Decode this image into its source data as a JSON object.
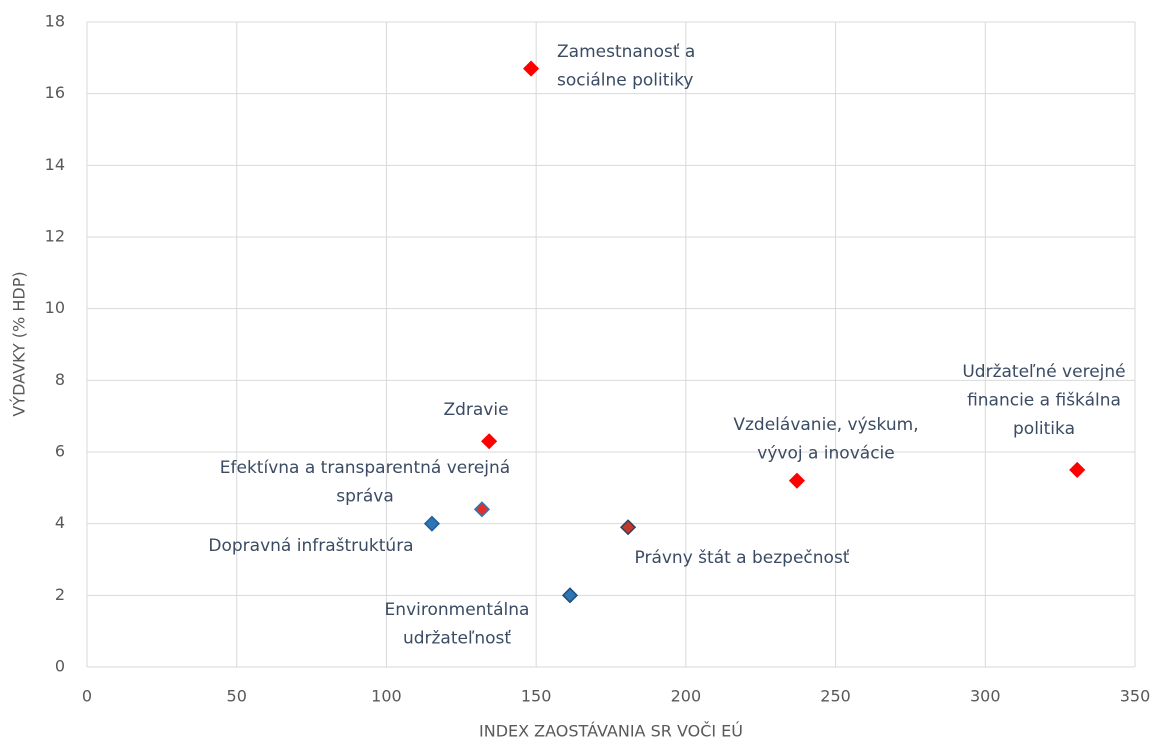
{
  "chart_data": {
    "type": "scatter",
    "xlabel": "INDEX ZAOSTÁVANIA SR VOČI EÚ",
    "ylabel": "VÝDAVKY (% HDP)",
    "xlim": [
      0,
      350
    ],
    "xticks": [
      0,
      50,
      100,
      150,
      200,
      250,
      300,
      350
    ],
    "ylim": [
      0,
      18
    ],
    "yticks": [
      0,
      2,
      4,
      6,
      8,
      10,
      12,
      14,
      16,
      18
    ],
    "grid": true,
    "x": [
      148.3,
      134.3,
      237.1,
      330.7,
      131.9,
      115.2,
      180.7,
      161.3
    ],
    "values": [
      16.7,
      6.3,
      5.2,
      5.5,
      4.4,
      4.0,
      3.9,
      2.0
    ],
    "labels": [
      [
        "Zamestnanosť a",
        "sociálne politiky"
      ],
      [
        "Zdravie"
      ],
      [
        "Vzdelávanie, výskum,",
        "vývoj a inovácie"
      ],
      [
        "Udržateľné verejné",
        "financie a fiškálna",
        "politika"
      ],
      [
        "Efektívna a transparentná verejná",
        "správa"
      ],
      [
        "Dopravná infraštruktúra"
      ],
      [
        "Právny štát a bezpečnosť"
      ],
      [
        "Environmentálna",
        "udržateľnosť"
      ]
    ],
    "colors": [
      "#ff0000",
      "#ff0000",
      "#ff0000",
      "#ff0000",
      "#e0302a",
      "#2e75b6",
      "#c0392b",
      "#2e75b6"
    ],
    "edge_colors": [
      "#ff0000",
      "#ff0000",
      "#ff0000",
      "#ff0000",
      "#2e75b6",
      "#1f5f9e",
      "#2f3f5f",
      "#1f4e79"
    ]
  }
}
